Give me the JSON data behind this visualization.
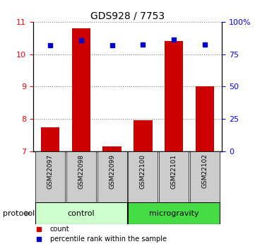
{
  "title": "GDS928 / 7753",
  "samples": [
    "GSM22097",
    "GSM22098",
    "GSM22099",
    "GSM22100",
    "GSM22101",
    "GSM22102"
  ],
  "bar_heights": [
    7.75,
    10.8,
    7.15,
    7.95,
    10.4,
    9.0
  ],
  "bar_base": 7.0,
  "blue_values": [
    10.28,
    10.43,
    10.28,
    10.3,
    10.45,
    10.3
  ],
  "ylim_left": [
    7,
    11
  ],
  "ylim_right": [
    0,
    100
  ],
  "yticks_left": [
    7,
    8,
    9,
    10,
    11
  ],
  "yticks_right": [
    0,
    25,
    50,
    75,
    100
  ],
  "ytick_labels_right": [
    "0",
    "25",
    "50",
    "75",
    "100%"
  ],
  "bar_color": "#cc0000",
  "blue_color": "#0000cc",
  "control_color": "#ccffcc",
  "microgravity_color": "#55ee55",
  "sample_box_color": "#cccccc",
  "groups": [
    {
      "label": "control",
      "indices": [
        0,
        1,
        2
      ],
      "color": "#ccffcc"
    },
    {
      "label": "microgravity",
      "indices": [
        3,
        4,
        5
      ],
      "color": "#44dd44"
    }
  ],
  "legend_items": [
    {
      "label": "count",
      "color": "#cc0000"
    },
    {
      "label": "percentile rank within the sample",
      "color": "#0000cc"
    }
  ],
  "protocol_label": "protocol",
  "bar_width": 0.6
}
